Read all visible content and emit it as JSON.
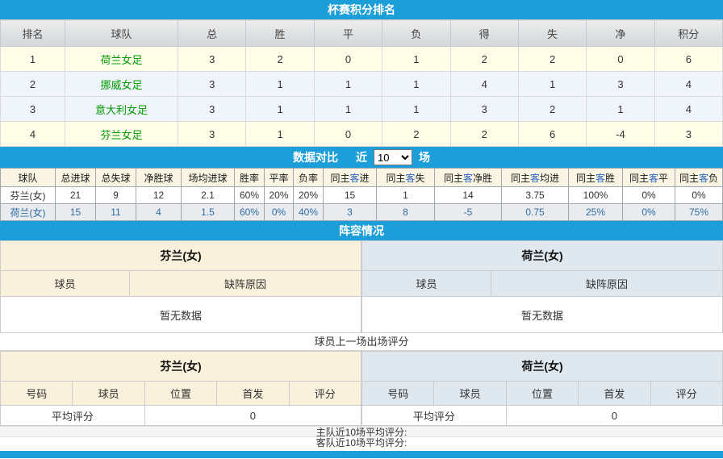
{
  "colors": {
    "accent_blue_bar": "#1C9ED9",
    "team_link_green": "#009900",
    "highlight_char_blue": "#2B65C0",
    "away_row_blue": "#2E6DA4",
    "cream_header": "#FAF1DC",
    "bluegray_header": "#DFE8EE"
  },
  "standings": {
    "title": "杯赛积分排名",
    "headers": [
      "排名",
      "球队",
      "总",
      "胜",
      "平",
      "负",
      "得",
      "失",
      "净",
      "积分"
    ],
    "rows": [
      [
        "1",
        "荷兰女足",
        "3",
        "2",
        "0",
        "1",
        "2",
        "2",
        "0",
        "6"
      ],
      [
        "2",
        "挪威女足",
        "3",
        "1",
        "1",
        "1",
        "4",
        "1",
        "3",
        "4"
      ],
      [
        "3",
        "意大利女足",
        "3",
        "1",
        "1",
        "1",
        "3",
        "2",
        "1",
        "4"
      ],
      [
        "4",
        "芬兰女足",
        "3",
        "1",
        "0",
        "2",
        "2",
        "6",
        "-4",
        "3"
      ]
    ]
  },
  "comparison": {
    "title": "数据对比",
    "near_label": "近",
    "rounds_selected": "10",
    "unit_label": "场",
    "headers": [
      "球队",
      "总进球",
      "总失球",
      "净胜球",
      "场均进球",
      "胜率",
      "平率",
      "负率",
      "同主客进",
      "同主客失",
      "同主客净胜",
      "同主客均进",
      "同主客胜",
      "同主客平",
      "同主客负"
    ],
    "rows": [
      [
        "芬兰(女)",
        "21",
        "9",
        "12",
        "2.1",
        "60%",
        "20%",
        "20%",
        "15",
        "1",
        "14",
        "3.75",
        "100%",
        "0%",
        "0%"
      ],
      [
        "荷兰(女)",
        "15",
        "11",
        "4",
        "1.5",
        "60%",
        "0%",
        "40%",
        "3",
        "8",
        "-5",
        "0.75",
        "25%",
        "0%",
        "75%"
      ]
    ]
  },
  "lineup": {
    "title": "阵容情况",
    "home": {
      "team": "芬兰(女)",
      "player_header": "球员",
      "reason_header": "缺阵原因",
      "empty": "暂无数据"
    },
    "away": {
      "team": "荷兰(女)",
      "player_header": "球员",
      "reason_header": "缺阵原因",
      "empty": "暂无数据"
    }
  },
  "ratings": {
    "section_title": "球员上一场出场评分",
    "headers": [
      "号码",
      "球员",
      "位置",
      "首发",
      "评分"
    ],
    "home": {
      "team": "芬兰(女)",
      "avg_label": "平均评分",
      "avg_value": "0"
    },
    "away": {
      "team": "荷兰(女)",
      "avg_label": "平均评分",
      "avg_value": "0"
    }
  },
  "footer": {
    "home_avg_label": "主队近10场平均评分:",
    "away_avg_label": "客队近10场平均评分:"
  }
}
